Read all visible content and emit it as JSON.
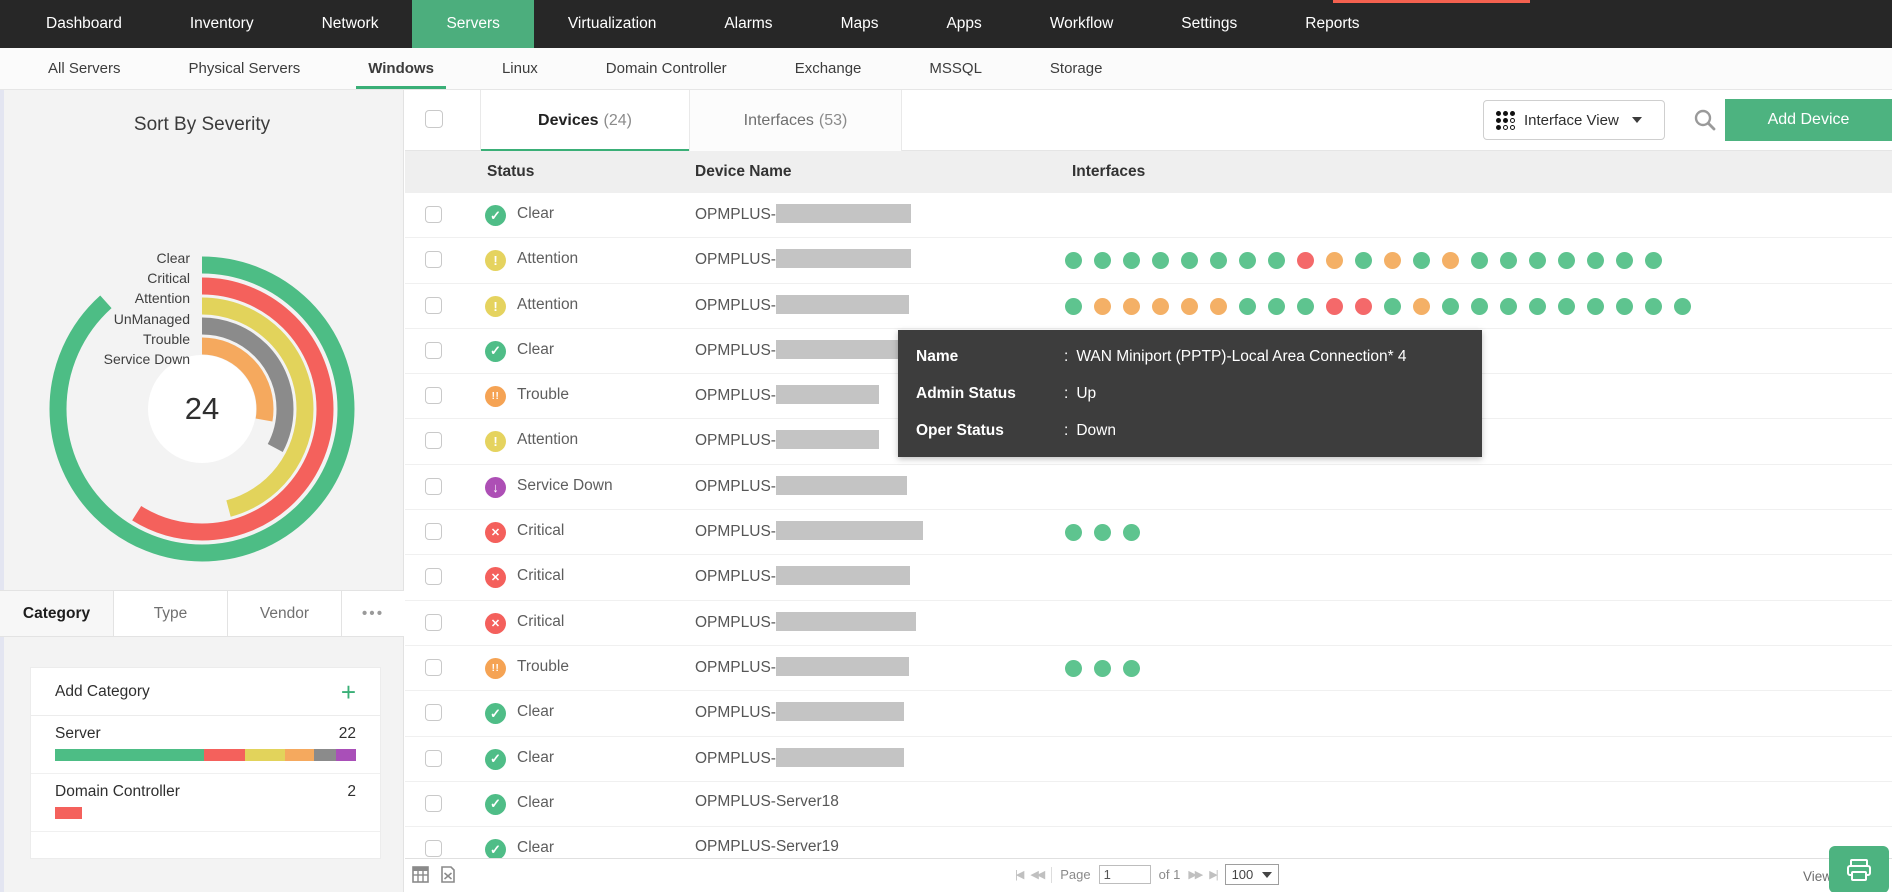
{
  "topnav": {
    "items": [
      {
        "label": "Dashboard",
        "active": false
      },
      {
        "label": "Inventory",
        "active": false
      },
      {
        "label": "Network",
        "active": false
      },
      {
        "label": "Servers",
        "active": true
      },
      {
        "label": "Virtualization",
        "active": false
      },
      {
        "label": "Alarms",
        "active": false
      },
      {
        "label": "Maps",
        "active": false
      },
      {
        "label": "Apps",
        "active": false
      },
      {
        "label": "Workflow",
        "active": false
      },
      {
        "label": "Settings",
        "active": false
      },
      {
        "label": "Reports",
        "active": false
      }
    ]
  },
  "subnav": {
    "items": [
      {
        "label": "All Servers",
        "active": false
      },
      {
        "label": "Physical Servers",
        "active": false
      },
      {
        "label": "Windows",
        "active": true
      },
      {
        "label": "Linux",
        "active": false
      },
      {
        "label": "Domain Controller",
        "active": false
      },
      {
        "label": "Exchange",
        "active": false
      },
      {
        "label": "MSSQL",
        "active": false
      },
      {
        "label": "Storage",
        "active": false
      }
    ]
  },
  "sidebar": {
    "title": "Sort By Severity",
    "chart": {
      "total": "24"
    },
    "tabs": [
      {
        "label": "Category",
        "active": true
      },
      {
        "label": "Type",
        "active": false
      },
      {
        "label": "Vendor",
        "active": false
      },
      {
        "label": "•••",
        "active": false
      }
    ],
    "add_category_label": "Add Category",
    "categories": [
      {
        "name": "Server",
        "count": "22",
        "segments": [
          {
            "color": "#4dbd85",
            "pct": 49.5
          },
          {
            "color": "#f4615c",
            "pct": 13.5
          },
          {
            "color": "#e2d35b",
            "pct": 13.5
          },
          {
            "color": "#f5a95e",
            "pct": 9.5
          },
          {
            "color": "#8b8b8b",
            "pct": 7.5
          },
          {
            "color": "#a94fb8",
            "pct": 6.5
          }
        ]
      },
      {
        "name": "Domain Controller",
        "count": "2",
        "segments": [
          {
            "color": "#f4615c",
            "pct": 9
          }
        ]
      }
    ]
  },
  "chart_data": {
    "type": "radial-severity-rings",
    "title": "Sort By Severity",
    "total": 24,
    "rings": [
      {
        "label": "Clear",
        "color": "#4dbd85",
        "sweep_deg": 318
      },
      {
        "label": "Critical",
        "color": "#f4615c",
        "sweep_deg": 212
      },
      {
        "label": "Attention",
        "color": "#e2d35b",
        "sweep_deg": 165
      },
      {
        "label": "UnManaged",
        "color": "#8b8b8b",
        "sweep_deg": 118
      },
      {
        "label": "Trouble",
        "color": "#f5a95e",
        "sweep_deg": 100
      },
      {
        "label": "Service Down",
        "color": "#a94fb8",
        "sweep_deg": 28
      }
    ]
  },
  "toolbar": {
    "devices_tab_label": "Devices",
    "devices_tab_count": "(24)",
    "interfaces_tab_label": "Interfaces",
    "interfaces_tab_count": "(53)",
    "interface_view_label": "Interface View",
    "add_device_label": "Add Device"
  },
  "table": {
    "columns": [
      "Status",
      "Device Name",
      "Interfaces"
    ],
    "status_colors": {
      "clear": "#4fbd87",
      "attention": "#e5d35f",
      "trouble": "#f5a354",
      "critical": "#f4605c",
      "servicedown": "#ad4fb5"
    },
    "status_glyphs": {
      "clear": "✓",
      "attention": "!",
      "trouble": "!!",
      "critical": "✕",
      "servicedown": "↓"
    },
    "dot_colors": {
      "g": "#5ec48f",
      "o": "#f4b066",
      "r": "#f4696a"
    },
    "rows": [
      {
        "status": "Clear",
        "type": "clear",
        "device_prefix": "OPMPLUS-",
        "redacted": true,
        "redact_width": 135,
        "dots": ""
      },
      {
        "status": "Attention",
        "type": "attention",
        "device_prefix": "OPMPLUS-",
        "redacted": true,
        "redact_width": 135,
        "dots": "ggggggggrogogogggggg g"
      },
      {
        "status": "Attention",
        "type": "attention",
        "device_prefix": "OPMPLUS-",
        "redacted": true,
        "redact_width": 133,
        "dots": "goooooggg rrgogggggggg g"
      },
      {
        "status": "Clear",
        "type": "clear",
        "device_prefix": "OPMPLUS-",
        "redacted": true,
        "redact_width": 135,
        "dots": ""
      },
      {
        "status": "Trouble",
        "type": "trouble",
        "device_prefix": "OPMPLUS-",
        "redacted": true,
        "redact_width": 103,
        "dots": ""
      },
      {
        "status": "Attention",
        "type": "attention",
        "device_prefix": "OPMPLUS-",
        "redacted": true,
        "redact_width": 103,
        "dots": ""
      },
      {
        "status": "Service Down",
        "type": "servicedown",
        "device_prefix": "OPMPLUS-",
        "redacted": true,
        "redact_width": 131,
        "dots": ""
      },
      {
        "status": "Critical",
        "type": "critical",
        "device_prefix": "OPMPLUS-",
        "redacted": true,
        "redact_width": 147,
        "dots": "ggg"
      },
      {
        "status": "Critical",
        "type": "critical",
        "device_prefix": "OPMPLUS-",
        "redacted": true,
        "redact_width": 134,
        "dots": ""
      },
      {
        "status": "Critical",
        "type": "critical",
        "device_prefix": "OPMPLUS-",
        "redacted": true,
        "redact_width": 140,
        "dots": ""
      },
      {
        "status": "Trouble",
        "type": "trouble",
        "device_prefix": "OPMPLUS-",
        "redacted": true,
        "redact_width": 133,
        "dots": "ggg"
      },
      {
        "status": "Clear",
        "type": "clear",
        "device_prefix": "OPMPLUS-",
        "redacted": true,
        "redact_width": 128,
        "dots": ""
      },
      {
        "status": "Clear",
        "type": "clear",
        "device_prefix": "OPMPLUS-",
        "redacted": true,
        "redact_width": 128,
        "dots": ""
      },
      {
        "status": "Clear",
        "type": "clear",
        "device_prefix": "OPMPLUS-Server18",
        "redacted": false,
        "redact_width": 0,
        "dots": ""
      },
      {
        "status": "Clear",
        "type": "clear",
        "device_prefix": "OPMPLUS-Server19",
        "redacted": false,
        "redact_width": 0,
        "dots": ""
      }
    ]
  },
  "tooltip": {
    "rows": [
      {
        "label": "Name",
        "value": "WAN Miniport (PPTP)-Local Area Connection* 4"
      },
      {
        "label": "Admin Status",
        "value": "Up"
      },
      {
        "label": "Oper Status",
        "value": "Down"
      }
    ]
  },
  "footer": {
    "first_arrow": "|◀",
    "prev_arrow": "◀◀",
    "next_arrow": "▶▶",
    "last_arrow": "▶|",
    "page_label": "Page",
    "page_value": "1",
    "of_label": "of 1",
    "page_size": "100",
    "view_label": "View"
  }
}
